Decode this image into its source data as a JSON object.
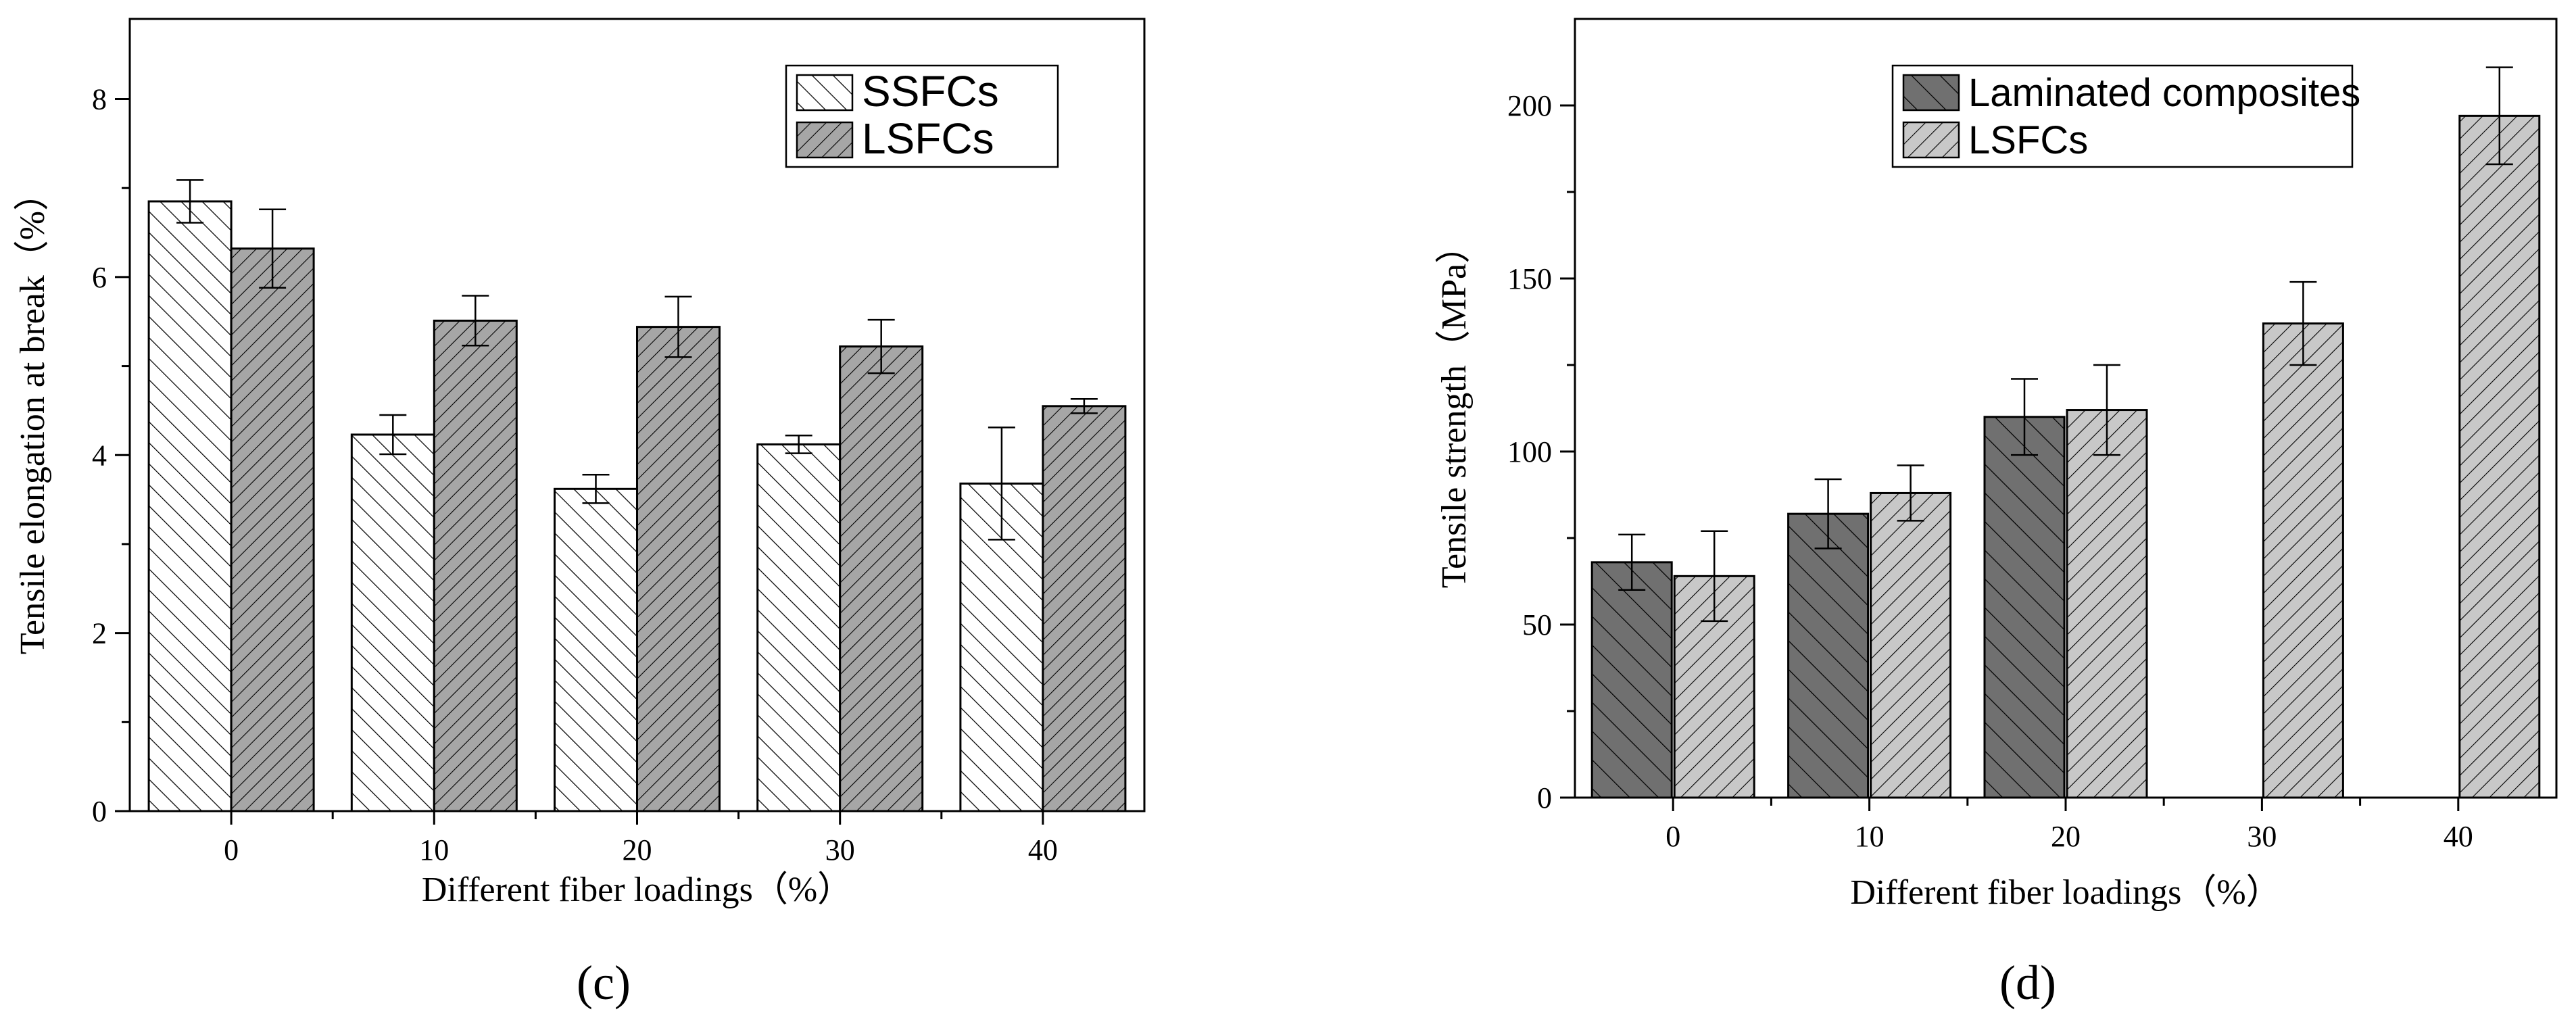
{
  "colors": {
    "background": "#ffffff",
    "axis": "#000000",
    "bar_white": "#ffffff",
    "bar_light": "#c8c8c8",
    "bar_mid": "#a6a6a6",
    "bar_dark": "#707070",
    "hatch": "#000000"
  },
  "chart_data": [
    {
      "type": "bar",
      "panel_label": "(c)",
      "xlabel": "Different fiber loadings（%）",
      "ylabel": "Tensile elongation at break（%）",
      "categories": [
        "0",
        "10",
        "20",
        "30",
        "40"
      ],
      "ylim": [
        0,
        8.9
      ],
      "yticks": [
        0,
        2,
        4,
        6,
        8
      ],
      "legend_position": "top-right",
      "series": [
        {
          "name": "SSFCs",
          "values": [
            6.85,
            4.23,
            3.62,
            4.12,
            3.68
          ],
          "errors": [
            0.24,
            0.22,
            0.16,
            0.1,
            0.63
          ]
        },
        {
          "name": "LSFCs",
          "values": [
            6.32,
            5.51,
            5.44,
            5.22,
            4.55
          ],
          "errors": [
            0.44,
            0.28,
            0.34,
            0.3,
            0.08
          ]
        }
      ]
    },
    {
      "type": "bar",
      "panel_label": "(d)",
      "xlabel": "Different fiber loadings（%）",
      "ylabel": "Tensile strength（MPa）",
      "categories": [
        "0",
        "10",
        "20",
        "30",
        "40"
      ],
      "ylim": [
        0,
        225
      ],
      "yticks": [
        0,
        50,
        100,
        150,
        200
      ],
      "legend_position": "top-left",
      "series": [
        {
          "name": "Laminated composites",
          "values": [
            68,
            82,
            110,
            null,
            null
          ],
          "errors": [
            8,
            10,
            11,
            null,
            null
          ]
        },
        {
          "name": "LSFCs",
          "values": [
            64,
            88,
            112,
            137,
            197
          ],
          "errors": [
            13,
            8,
            13,
            12,
            14
          ]
        }
      ]
    }
  ]
}
